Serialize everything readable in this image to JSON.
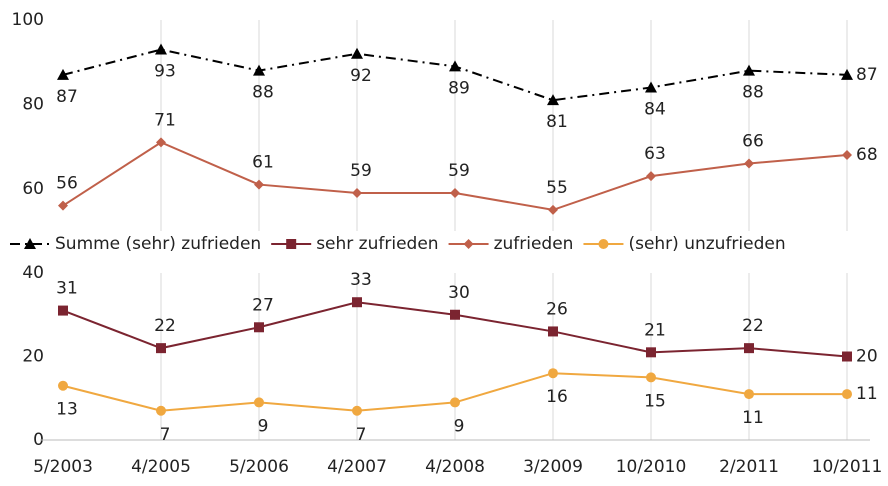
{
  "chart_data": [
    {
      "type": "line",
      "series": [
        {
          "name": "Summe (sehr) zufrieden",
          "color": "#000000",
          "marker": "triangle",
          "dash": "dashdot",
          "values": [
            87,
            93,
            88,
            92,
            89,
            81,
            84,
            88,
            87
          ]
        },
        {
          "name": "zufrieden",
          "color": "#c0604a",
          "marker": "diamond",
          "values": [
            56,
            71,
            61,
            59,
            59,
            55,
            63,
            66,
            68
          ]
        }
      ],
      "ylim": [
        50,
        100
      ],
      "yticks": [
        60,
        80,
        100
      ],
      "grid": "x"
    },
    {
      "type": "line",
      "categories": [
        "5/2003",
        "4/2005",
        "5/2006",
        "4/2007",
        "4/2008",
        "3/2009",
        "10/2010",
        "2/2011",
        "10/2011"
      ],
      "series": [
        {
          "name": "sehr zufrieden",
          "color": "#7b2430",
          "marker": "square",
          "values": [
            31,
            22,
            27,
            33,
            30,
            26,
            21,
            22,
            20
          ]
        },
        {
          "name": "(sehr) unzufrieden",
          "color": "#f0a840",
          "marker": "circle",
          "values": [
            13,
            7,
            9,
            7,
            9,
            16,
            15,
            11,
            11
          ]
        }
      ],
      "ylim": [
        0,
        40
      ],
      "yticks": [
        0,
        20,
        40
      ],
      "grid": "x"
    }
  ]
}
